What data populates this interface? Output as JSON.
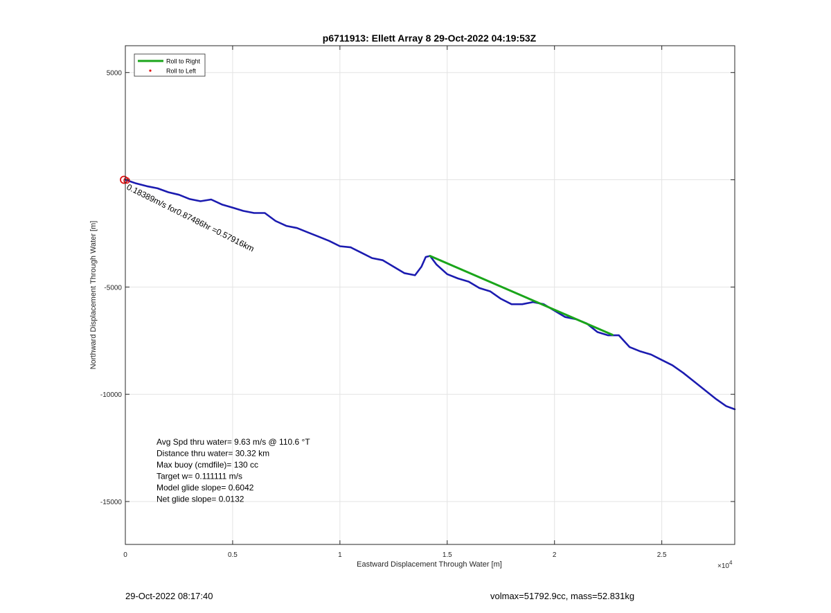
{
  "chart_data": {
    "type": "line",
    "title": "p6711913: Ellett Array 8 29-Oct-2022 04:19:53Z",
    "xlabel": "Eastward Displacement Through Water [m]",
    "ylabel": "Northward Displacement Through Water [m]",
    "x_exponent_label": "×10",
    "x_exponent_power": "4",
    "xlim": [
      0,
      28400
    ],
    "ylim": [
      -17000,
      6250
    ],
    "x_ticks": [
      0,
      5000,
      10000,
      15000,
      20000,
      25000
    ],
    "x_tick_labels": [
      "0",
      "0.5",
      "1",
      "1.5",
      "2",
      "2.5"
    ],
    "y_ticks": [
      5000,
      0,
      -5000,
      -10000,
      -15000
    ],
    "y_tick_labels": [
      "5000",
      "",
      "-5000",
      "-10000",
      "-15000"
    ],
    "grid": true,
    "legend": {
      "location": "top-left",
      "entries": [
        {
          "label": "Roll to Right",
          "color": "#1aa51a",
          "style": "line"
        },
        {
          "label": "Roll to Left",
          "color": "#e01010",
          "style": "point"
        }
      ]
    },
    "series": [
      {
        "name": "Roll to Right",
        "color": "#1aa51a",
        "x": [
          14200,
          22700
        ],
        "y": [
          -3550,
          -7230
        ]
      },
      {
        "color": "#1b1bb0",
        "x": [
          0,
          500,
          1000,
          1500,
          2000,
          2500,
          3000,
          3500,
          4000,
          4500,
          5000,
          5500,
          6000,
          6500,
          7000,
          7500,
          8000,
          8500,
          9000,
          9500,
          10000,
          10500,
          11000,
          11500,
          12000,
          12500,
          13000,
          13500,
          13800,
          14000,
          14200,
          14500,
          15000,
          15500,
          16000,
          16500,
          17000,
          17500,
          18000,
          18500,
          19000,
          19500,
          20000,
          20500,
          21000,
          21500,
          22000,
          22500,
          23000,
          23500,
          24000,
          24500,
          25000,
          25500,
          26000,
          26500,
          27000,
          27500,
          28000,
          28400
        ],
        "y": [
          0,
          -170,
          -300,
          -400,
          -580,
          -700,
          -900,
          -1000,
          -920,
          -1150,
          -1300,
          -1450,
          -1550,
          -1550,
          -1920,
          -2150,
          -2250,
          -2450,
          -2650,
          -2850,
          -3100,
          -3150,
          -3400,
          -3650,
          -3750,
          -4050,
          -4350,
          -4450,
          -4050,
          -3600,
          -3550,
          -3950,
          -4400,
          -4600,
          -4750,
          -5050,
          -5200,
          -5550,
          -5800,
          -5800,
          -5700,
          -5800,
          -6100,
          -6400,
          -6500,
          -6700,
          -7100,
          -7250,
          -7250,
          -7800,
          -8000,
          -8150,
          -8400,
          -8650,
          -9000,
          -9400,
          -9800,
          -10200,
          -10550,
          -10700
        ]
      }
    ],
    "start_marker": {
      "x": 0,
      "y": 0,
      "color": "#e01010"
    },
    "annotation": {
      "text": "0.18389m/s for0.87486hr =0.57916km",
      "x": 0,
      "y": -100,
      "angle": 26.5
    },
    "stats_lines": [
      "Avg Spd thru water=  9.63 m/s @ 110.6 °T",
      "Distance thru water= 30.32 km",
      "Max buoy (cmdfile)= 130 cc",
      "Target w= 0.111111 m/s",
      "Model glide slope= 0.6042",
      "Net glide slope= 0.0132"
    ]
  },
  "footer": {
    "timestamp": "29-Oct-2022 08:17:40",
    "summary": "volmax=51792.9cc, mass=52.831kg"
  }
}
